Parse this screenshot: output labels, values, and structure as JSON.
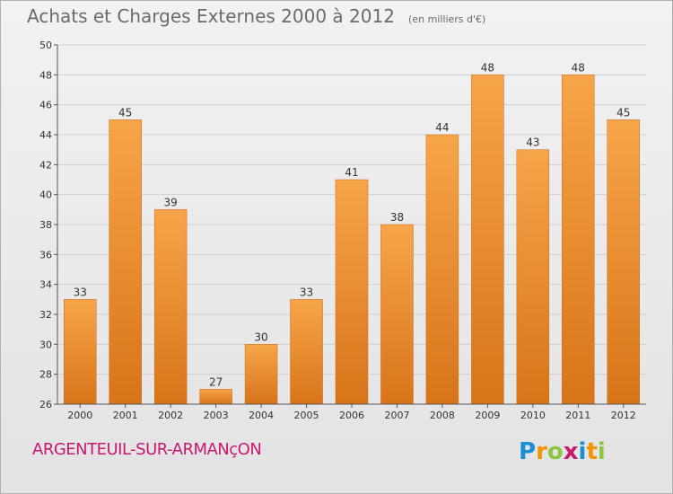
{
  "title": "Achats et Charges Externes 2000 à 2012",
  "subtitle": "(en milliers d'€)",
  "commune": "ARGENTEUIL-SUR-ARMANçON",
  "brand": {
    "letters": [
      "P",
      "r",
      "o",
      "x",
      "i",
      "t",
      "i"
    ],
    "colors": [
      "#1a8fd6",
      "#f29400",
      "#8cc63f",
      "#c8196e",
      "#1a8fd6",
      "#f29400",
      "#8cc63f"
    ]
  },
  "colors": {
    "bar_light": "#f7a54a",
    "bar_dark": "#d8741a",
    "grid": "#d0d0d0",
    "axis": "#555555",
    "text": "#333333"
  },
  "chart_data": {
    "type": "bar",
    "title": "Achats et Charges Externes 2000 à 2012",
    "xlabel": "",
    "ylabel": "",
    "categories": [
      "2000",
      "2001",
      "2002",
      "2003",
      "2004",
      "2005",
      "2006",
      "2007",
      "2008",
      "2009",
      "2010",
      "2011",
      "2012"
    ],
    "values": [
      33,
      45,
      39,
      27,
      30,
      33,
      41,
      38,
      44,
      48,
      43,
      48,
      45
    ],
    "ylim": [
      26,
      50
    ],
    "yticks": [
      26,
      28,
      30,
      32,
      34,
      36,
      38,
      40,
      42,
      44,
      46,
      48,
      50
    ],
    "grid": true
  }
}
